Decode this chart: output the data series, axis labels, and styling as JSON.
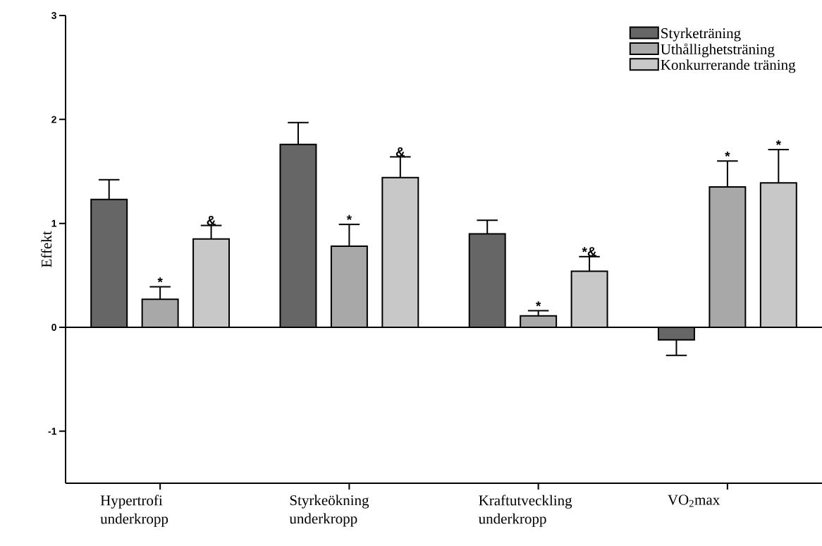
{
  "chart_data": {
    "type": "bar",
    "ylabel": "Effekt",
    "categories": [
      "Hypertrofi underkropp",
      "Styrkeökning underkropp",
      "Kraftutveckling underkropp",
      "VO$_{2}$max"
    ],
    "series": [
      {
        "name": "Styrketräning",
        "color": "#666666",
        "values": [
          1.23,
          1.76,
          0.9,
          -0.12
        ],
        "errors": [
          [
            1.23,
            1.42
          ],
          [
            1.76,
            1.97
          ],
          [
            0.9,
            1.03
          ],
          [
            -0.27,
            -0.12
          ]
        ],
        "value_labels": [
          null,
          null,
          null,
          null
        ]
      },
      {
        "name": "Uthållighetsträning",
        "color": "#a8a8a8",
        "values": [
          0.27,
          0.78,
          0.11,
          1.35
        ],
        "errors": [
          [
            0.27,
            0.39
          ],
          [
            0.78,
            0.99
          ],
          [
            0.11,
            0.16
          ],
          [
            1.35,
            1.6
          ]
        ],
        "value_labels": [
          "*",
          "*",
          "*",
          "*"
        ]
      },
      {
        "name": "Konkurrerande träning",
        "color": "#c8c8c8",
        "values": [
          0.85,
          1.44,
          0.54,
          1.39
        ],
        "errors": [
          [
            0.85,
            0.98
          ],
          [
            1.44,
            1.64
          ],
          [
            0.54,
            0.68
          ],
          [
            1.39,
            1.71
          ]
        ],
        "value_labels": [
          "&",
          "&",
          "*&",
          "*"
        ]
      }
    ],
    "ylim": [
      -1.5,
      3
    ],
    "yticks": [
      -1,
      0,
      1,
      2,
      3
    ],
    "ref_lines": [
      {
        "axis": "y",
        "value": 0
      }
    ],
    "legend": "top right"
  }
}
